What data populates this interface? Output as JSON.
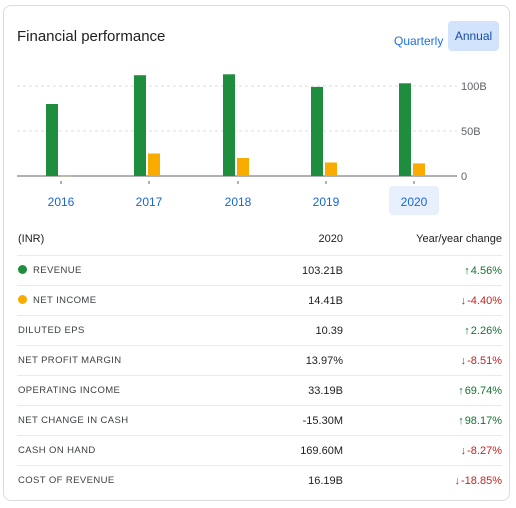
{
  "header": {
    "title": "Financial performance",
    "toggle_quarterly": "Quarterly",
    "toggle_annual": "Annual"
  },
  "colors": {
    "revenue": "#1e8e3e",
    "net_income": "#f9ab00",
    "selected_bg": "#e8f0fe"
  },
  "chart_data": {
    "type": "bar",
    "categories": [
      "2016",
      "2017",
      "2018",
      "2019",
      "2020"
    ],
    "series": [
      {
        "name": "REVENUE",
        "values": [
          80,
          112,
          113,
          99,
          103
        ]
      },
      {
        "name": "NET INCOME",
        "values": [
          1,
          25,
          20,
          15,
          14
        ]
      }
    ],
    "yticks": [
      "100B",
      "50B",
      "0"
    ],
    "ytick_values": [
      100,
      50,
      0
    ],
    "ylim": [
      0,
      115
    ],
    "grid": true,
    "selected_category": "2020"
  },
  "table": {
    "header": {
      "label": "(INR)",
      "value": "2020",
      "change": "Year/year change"
    },
    "rows": [
      {
        "label": "REVENUE",
        "value": "103.21B",
        "change": "4.56%",
        "direction": "up",
        "dot": "revenue"
      },
      {
        "label": "NET INCOME",
        "value": "14.41B",
        "change": "-4.40%",
        "direction": "down",
        "dot": "net_income"
      },
      {
        "label": "DILUTED EPS",
        "value": "10.39",
        "change": "2.26%",
        "direction": "up"
      },
      {
        "label": "NET PROFIT MARGIN",
        "value": "13.97%",
        "change": "-8.51%",
        "direction": "down"
      },
      {
        "label": "OPERATING INCOME",
        "value": "33.19B",
        "change": "69.74%",
        "direction": "up"
      },
      {
        "label": "NET CHANGE IN CASH",
        "value": "-15.30M",
        "change": "98.17%",
        "direction": "up"
      },
      {
        "label": "CASH ON HAND",
        "value": "169.60M",
        "change": "-8.27%",
        "direction": "down"
      },
      {
        "label": "COST OF REVENUE",
        "value": "16.19B",
        "change": "-18.85%",
        "direction": "down"
      }
    ]
  }
}
